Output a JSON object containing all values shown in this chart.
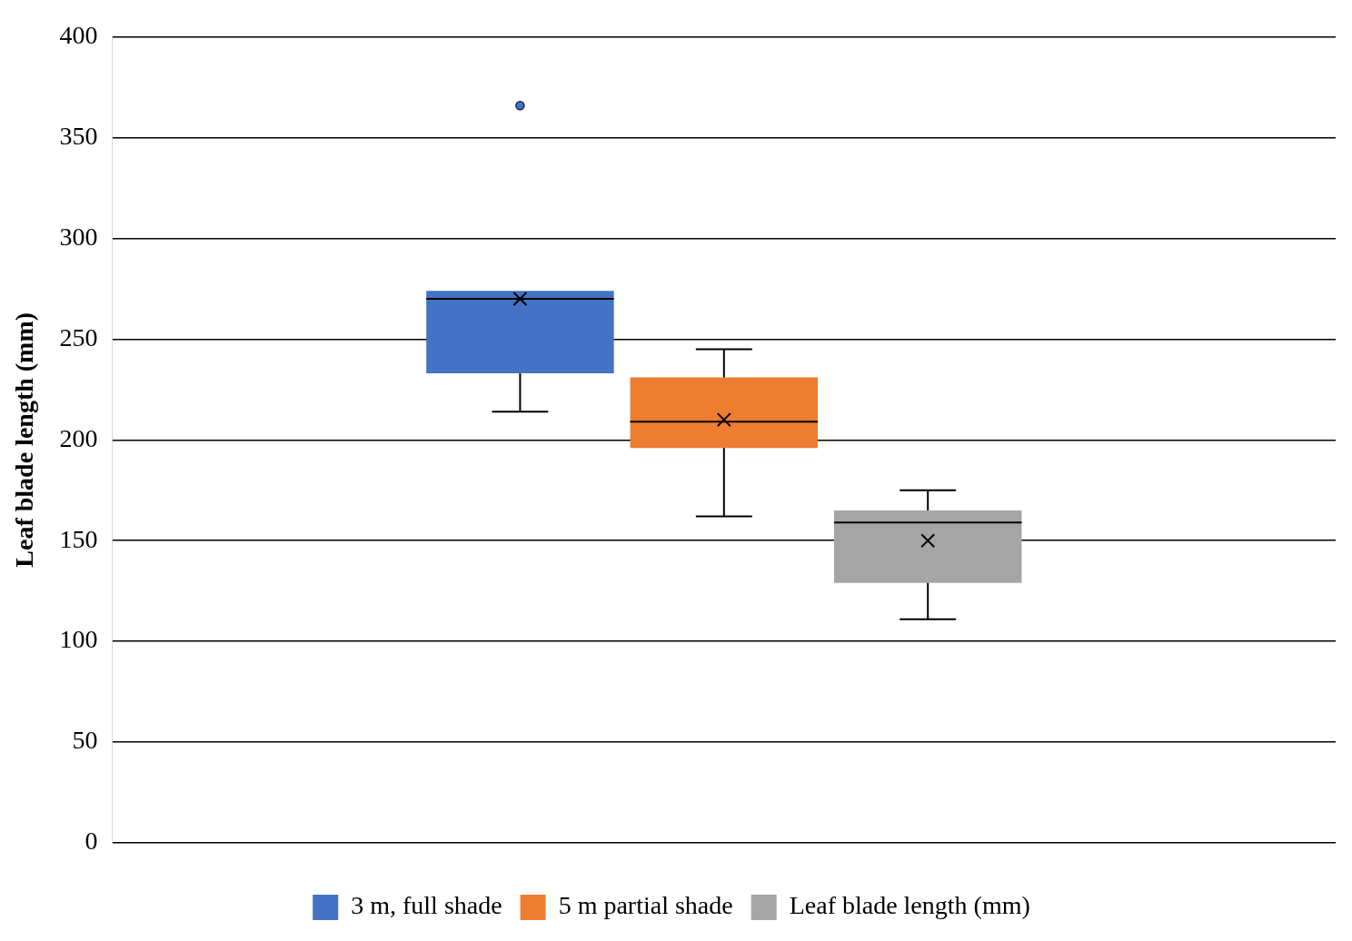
{
  "chart_data": {
    "type": "box",
    "ylabel": "Leaf blade length (mm)",
    "categories": [
      null
    ],
    "series": [
      {
        "name": "3 m, full shade",
        "color": "#4472c4",
        "boxes": [
          {
            "low": 214,
            "q1": 233,
            "median": 270,
            "q3": 274,
            "high": 274,
            "mean": 270,
            "outliers": [
              366
            ]
          }
        ]
      },
      {
        "name": "5 m partial shade",
        "color": "#ed7d31",
        "boxes": [
          {
            "low": 162,
            "q1": 196,
            "median": 209,
            "q3": 231,
            "high": 245,
            "mean": 210
          }
        ]
      },
      {
        "name": "Leaf blade length (mm)",
        "color": "#a5a5a5",
        "boxes": [
          {
            "low": 111,
            "q1": 129,
            "median": 159,
            "q3": 165,
            "high": 175,
            "mean": 150
          }
        ]
      }
    ],
    "ylim": [
      0,
      400
    ],
    "yticks": [
      0,
      50,
      100,
      150,
      200,
      250,
      300,
      350,
      400
    ],
    "grid": "y",
    "legend": "bottom"
  }
}
